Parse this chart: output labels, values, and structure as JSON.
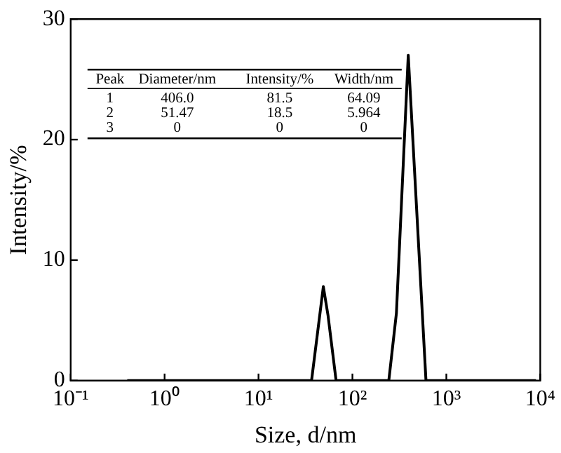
{
  "chart_data": {
    "type": "line",
    "xlabel": "Size, d/nm",
    "ylabel": "Intensity/%",
    "x": [
      0.4,
      36.7,
      49,
      55,
      67,
      244,
      294,
      393,
      607,
      9000
    ],
    "values": [
      0,
      0,
      7.8,
      5.4,
      0,
      0,
      5.6,
      27,
      0,
      0
    ],
    "color": "#000000",
    "log": "x",
    "marker": "none",
    "line_style": "solid",
    "grid": false,
    "legend": false,
    "xlim": [
      0.1,
      10000
    ],
    "xticks": [
      {
        "value": 0.1,
        "label": "10⁻¹"
      },
      {
        "value": 1,
        "label": "10⁰"
      },
      {
        "value": 10,
        "label": "10¹"
      },
      {
        "value": 100,
        "label": "10²"
      },
      {
        "value": 1000,
        "label": "10³"
      },
      {
        "value": 10000,
        "label": "10⁴"
      }
    ],
    "ylim": [
      0,
      30
    ],
    "yticks": [
      0,
      10,
      20,
      30
    ],
    "annotations": [
      "Peak",
      "Diameter/nm",
      "Intensity/%",
      "Width/nm",
      "1",
      "406.0",
      "81.5",
      "64.09",
      "2",
      "51.47",
      "18.5",
      "5.964",
      "3",
      "0",
      "0",
      "0"
    ]
  }
}
